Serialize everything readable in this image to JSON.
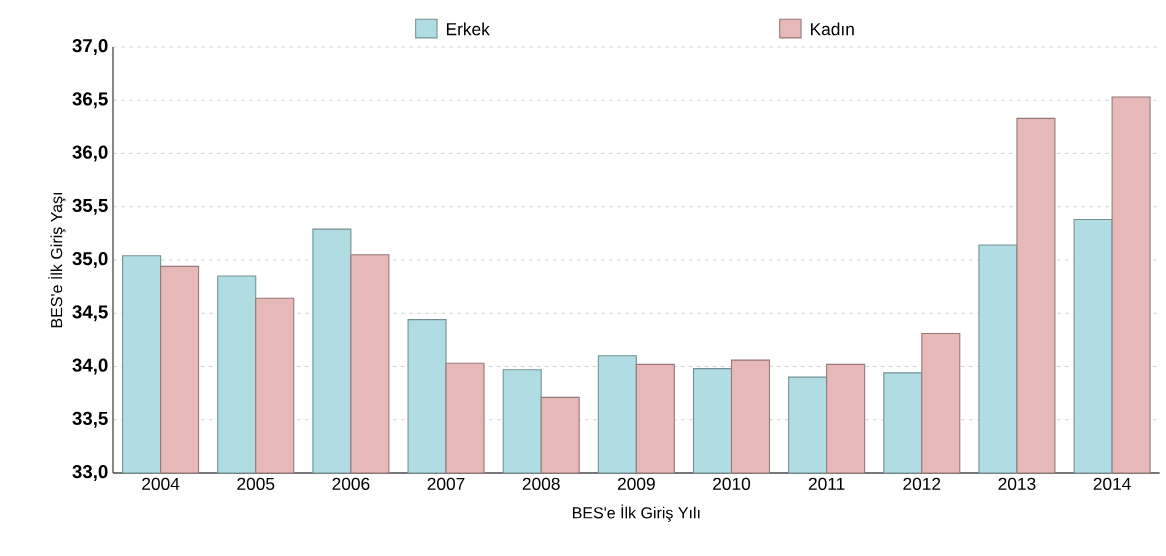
{
  "chart_data": {
    "type": "bar",
    "xlabel": "BES'e İlk Giriş Yılı",
    "ylabel": "BES'e İlk Giriş Yaşı",
    "categories": [
      "2004",
      "2005",
      "2006",
      "2007",
      "2008",
      "2009",
      "2010",
      "2011",
      "2012",
      "2013",
      "2014"
    ],
    "series": [
      {
        "name": "Erkek",
        "color": "#b0dde4",
        "values": [
          35.04,
          34.85,
          35.29,
          34.44,
          33.97,
          34.1,
          33.98,
          33.9,
          33.94,
          35.14,
          35.38
        ]
      },
      {
        "name": "Kadın",
        "color": "#e6b8b7",
        "values": [
          34.94,
          34.64,
          35.05,
          34.03,
          33.71,
          34.02,
          34.06,
          34.02,
          34.31,
          36.33,
          36.53
        ]
      }
    ],
    "ylim": [
      33,
      37
    ],
    "yticks": [
      {
        "value": 33,
        "label": "33,0"
      },
      {
        "value": 33.5,
        "label": "33,5"
      },
      {
        "value": 34,
        "label": "34,0"
      },
      {
        "value": 34.5,
        "label": "34,5"
      },
      {
        "value": 35,
        "label": "35,0"
      },
      {
        "value": 35.5,
        "label": "35,5"
      },
      {
        "value": 36,
        "label": "36,0"
      },
      {
        "value": 36.5,
        "label": "36,5"
      },
      {
        "value": 37,
        "label": "37,0"
      }
    ],
    "grid": "y",
    "legend": "top"
  }
}
